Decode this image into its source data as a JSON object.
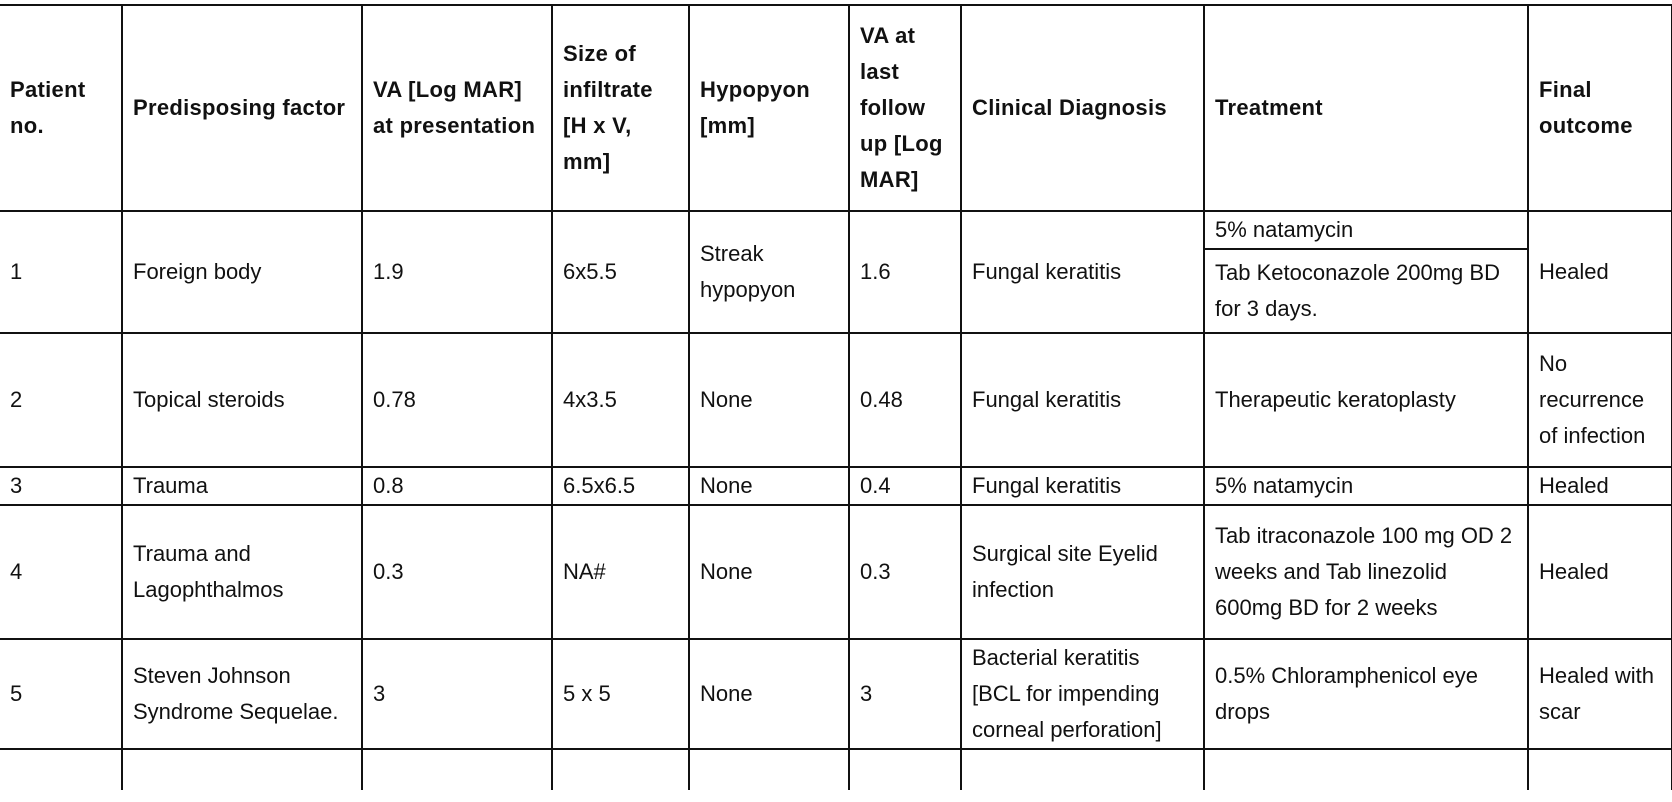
{
  "table": {
    "headers": {
      "patient_no": "Patient no.",
      "predisposing": "Predisposing factor",
      "va_presentation": "VA [Log MAR] at presentation",
      "infiltrate": "Size of infiltrate [H x V, mm]",
      "hypopyon": "Hypopyon [mm]",
      "va_last": "VA at last follow up [Log MAR]",
      "diagnosis": "Clinical Diagnosis",
      "treatment": "Treatment",
      "outcome": "Final outcome"
    },
    "rows": [
      {
        "patient_no": "1",
        "predisposing": "Foreign body",
        "va_presentation": "1.9",
        "infiltrate": "6x5.5",
        "hypopyon": "Streak hypopyon",
        "va_last": "1.6",
        "diagnosis": "Fungal keratitis",
        "treatment_a": "5% natamycin",
        "treatment_b": "Tab Ketoconazole 200mg BD for 3 days.",
        "outcome": "Healed"
      },
      {
        "patient_no": "2",
        "predisposing": "Topical steroids",
        "va_presentation": "0.78",
        "infiltrate": "4x3.5",
        "hypopyon": "None",
        "va_last": "0.48",
        "diagnosis": "Fungal keratitis",
        "treatment": "Therapeutic keratoplasty",
        "outcome": "No recurrence of infection"
      },
      {
        "patient_no": "3",
        "predisposing": "Trauma",
        "va_presentation": "0.8",
        "infiltrate": "6.5x6.5",
        "hypopyon": "None",
        "va_last": "0.4",
        "diagnosis": "Fungal keratitis",
        "treatment": "5% natamycin",
        "outcome": "Healed"
      },
      {
        "patient_no": "4",
        "predisposing": "Trauma and Lagophthalmos",
        "va_presentation": "0.3",
        "infiltrate": "NA#",
        "hypopyon": "None",
        "va_last": "0.3",
        "diagnosis": "Surgical site Eyelid infection",
        "treatment": "Tab itraconazole 100 mg OD 2 weeks and Tab linezolid 600mg BD for 2 weeks",
        "outcome": "Healed"
      },
      {
        "patient_no": "5",
        "predisposing": "Steven Johnson Syndrome Sequelae.",
        "va_presentation": "3",
        "infiltrate": "5 x 5",
        "hypopyon": "None",
        "va_last": "3",
        "diagnosis": "Bacterial keratitis [BCL for impending corneal perforation]",
        "treatment": "0.5% Chloramphenicol eye drops",
        "outcome": "Healed with scar"
      }
    ]
  }
}
